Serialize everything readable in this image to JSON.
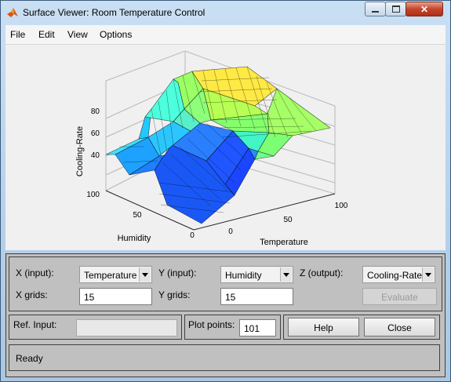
{
  "window": {
    "title": "Surface Viewer: Room Temperature Control"
  },
  "menu": [
    "File",
    "Edit",
    "View",
    "Options"
  ],
  "plot": {
    "zlabel": "Cooling-Rate",
    "xlabel": "Temperature",
    "ylabel": "Humidity",
    "z_ticks": [
      "40",
      "60",
      "80",
      "100"
    ],
    "x_ticks": [
      "0",
      "50",
      "100"
    ],
    "y_ticks": [
      "100",
      "50",
      "0"
    ]
  },
  "controls": {
    "x_input_label": "X (input):",
    "x_input_value": "Temperature",
    "y_input_label": "Y (input):",
    "y_input_value": "Humidity",
    "z_output_label": "Z (output):",
    "z_output_value": "Cooling-Rate",
    "x_grids_label": "X grids:",
    "x_grids_value": "15",
    "y_grids_label": "Y grids:",
    "y_grids_value": "15",
    "evaluate_label": "Evaluate",
    "ref_input_label": "Ref. Input:",
    "ref_input_value": "",
    "plot_points_label": "Plot points:",
    "plot_points_value": "101",
    "help_label": "Help",
    "close_label": "Close"
  },
  "status": {
    "text": "Ready"
  },
  "icons": {
    "app": "matlab-icon",
    "minimize": "minimize-icon",
    "maximize": "maximize-icon",
    "close": "close-icon"
  }
}
